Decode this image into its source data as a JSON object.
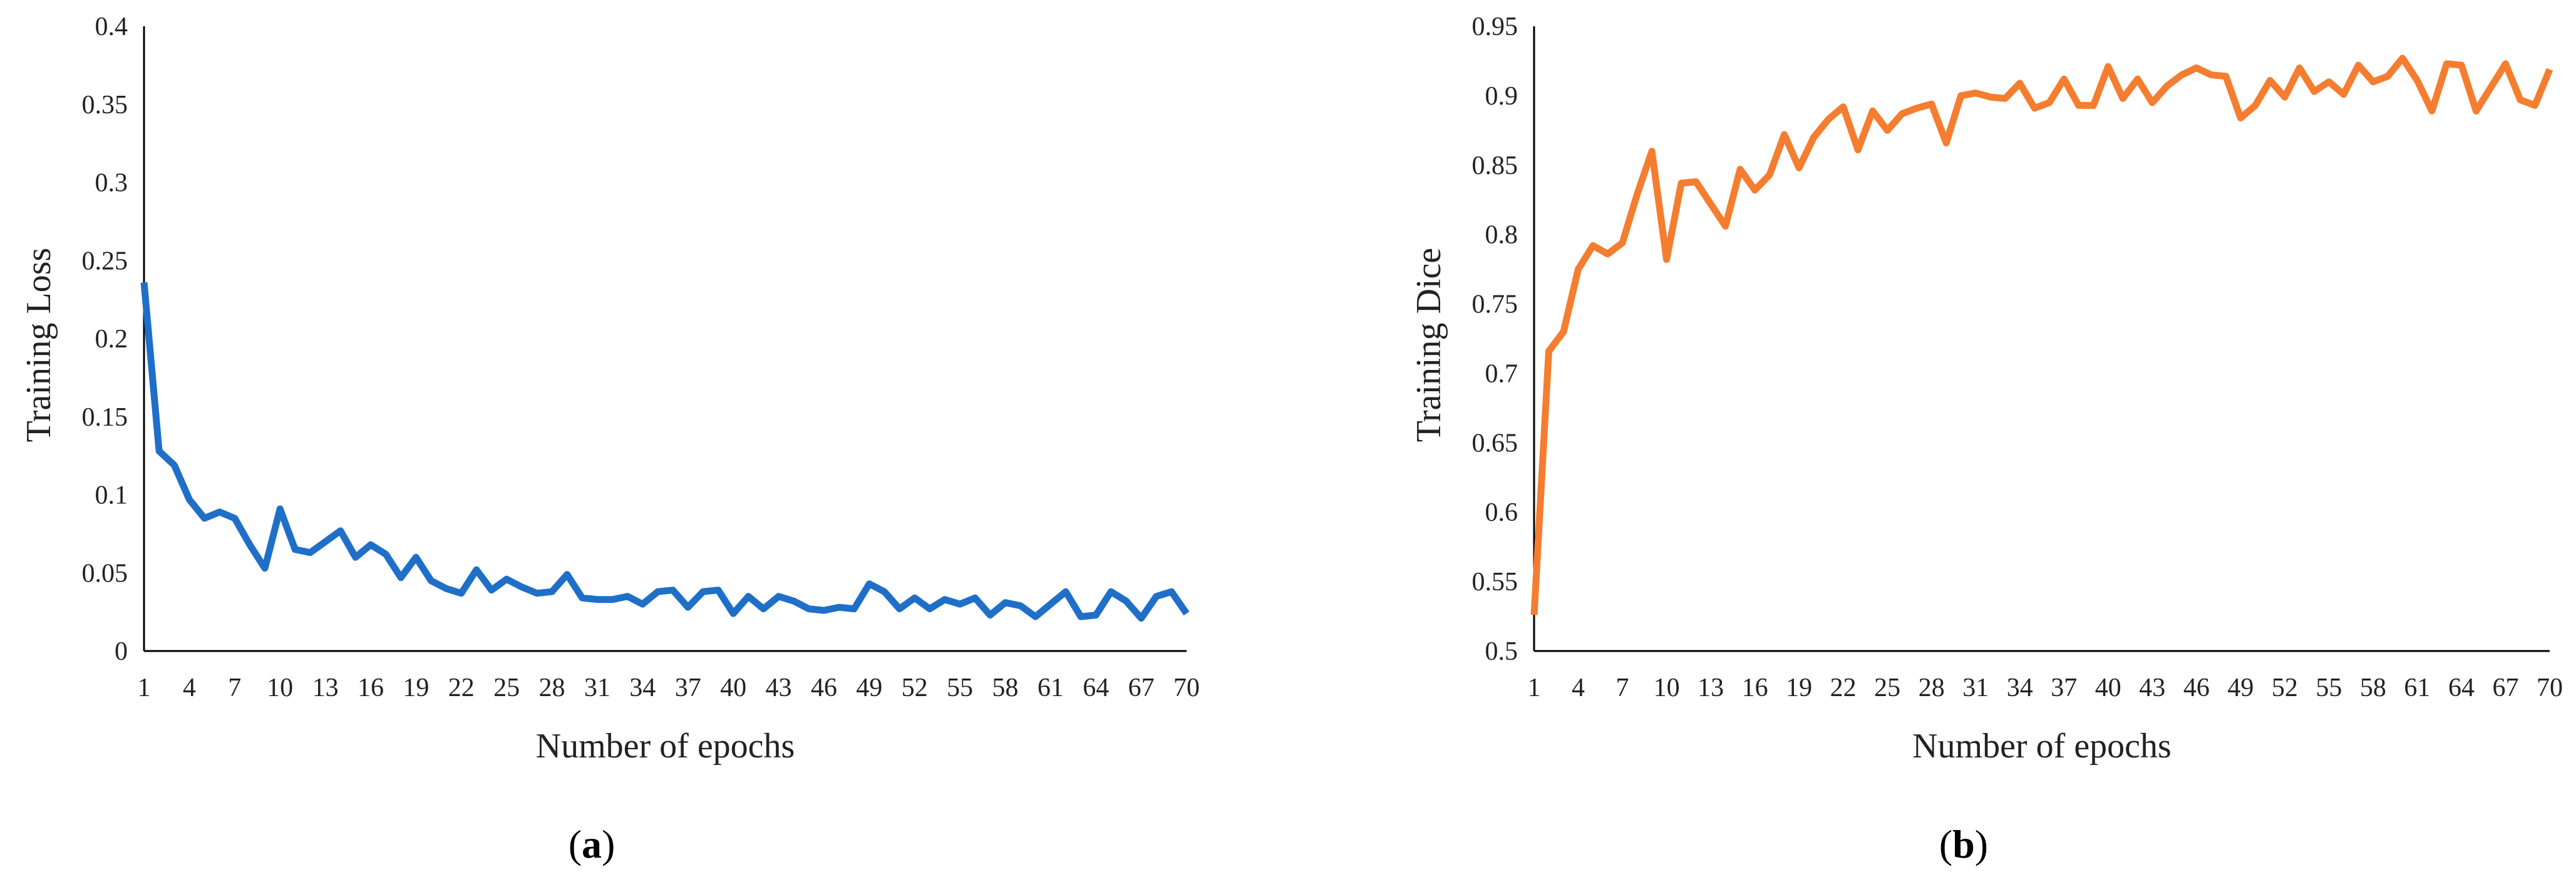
{
  "panels": [
    {
      "label_letter": "a",
      "chart_data": {
        "type": "line",
        "title": "",
        "xlabel": "Number of epochs",
        "ylabel": "Training Loss",
        "xlim": [
          1,
          70
        ],
        "ylim": [
          0,
          0.4
        ],
        "yticks": [
          0,
          0.05,
          0.1,
          0.15,
          0.2,
          0.25,
          0.3,
          0.35,
          0.4
        ],
        "ytick_labels": [
          "0",
          "0.05",
          "0.1",
          "0.15",
          "0.2",
          "0.25",
          "0.3",
          "0.35",
          "0.4"
        ],
        "xticks": [
          1,
          4,
          7,
          10,
          13,
          16,
          19,
          22,
          25,
          28,
          31,
          34,
          37,
          40,
          43,
          46,
          49,
          52,
          55,
          58,
          61,
          64,
          67,
          70
        ],
        "grid": false,
        "legend": "none",
        "color": "#1f6fc9",
        "series": [
          {
            "x": [
              1,
              2,
              3,
              4,
              5,
              6,
              7,
              8,
              9,
              10,
              11,
              12,
              13,
              14,
              15,
              16,
              17,
              18,
              19,
              20,
              21,
              22,
              23,
              24,
              25,
              26,
              27,
              28,
              29,
              30,
              31,
              32,
              33,
              34,
              35,
              36,
              37,
              38,
              39,
              40,
              41,
              42,
              43,
              44,
              45,
              46,
              47,
              48,
              49,
              50,
              51,
              52,
              53,
              54,
              55,
              56,
              57,
              58,
              59,
              60,
              61,
              62,
              63,
              64,
              65,
              66,
              67,
              68,
              69,
              70
            ],
            "values": [
              0.236,
              0.128,
              0.119,
              0.097,
              0.085,
              0.089,
              0.085,
              0.068,
              0.053,
              0.091,
              0.065,
              0.063,
              0.07,
              0.077,
              0.06,
              0.068,
              0.062,
              0.047,
              0.06,
              0.045,
              0.04,
              0.037,
              0.052,
              0.039,
              0.046,
              0.041,
              0.037,
              0.038,
              0.049,
              0.034,
              0.033,
              0.033,
              0.035,
              0.03,
              0.038,
              0.039,
              0.028,
              0.038,
              0.039,
              0.024,
              0.035,
              0.027,
              0.035,
              0.032,
              0.027,
              0.026,
              0.028,
              0.027,
              0.043,
              0.038,
              0.027,
              0.034,
              0.027,
              0.033,
              0.03,
              0.034,
              0.023,
              0.031,
              0.029,
              0.022,
              0.03,
              0.038,
              0.022,
              0.023,
              0.038,
              0.032,
              0.021,
              0.035,
              0.038,
              0.024
            ]
          }
        ]
      }
    },
    {
      "label_letter": "b",
      "chart_data": {
        "type": "line",
        "title": "",
        "xlabel": "Number of epochs",
        "ylabel": "Training Dice",
        "xlim": [
          1,
          70
        ],
        "ylim": [
          0.5,
          0.95
        ],
        "yticks": [
          0.5,
          0.55,
          0.6,
          0.65,
          0.7,
          0.75,
          0.8,
          0.85,
          0.9,
          0.95
        ],
        "ytick_labels": [
          "0.5",
          "0.55",
          "0.6",
          "0.65",
          "0.7",
          "0.75",
          "0.8",
          "0.85",
          "0.9",
          "0.95"
        ],
        "xticks": [
          1,
          4,
          7,
          10,
          13,
          16,
          19,
          22,
          25,
          28,
          31,
          34,
          37,
          40,
          43,
          46,
          49,
          52,
          55,
          58,
          61,
          64,
          67,
          70
        ],
        "grid": false,
        "legend": "none",
        "color": "#f47d30",
        "series": [
          {
            "x": [
              1,
              2,
              3,
              4,
              5,
              6,
              7,
              8,
              9,
              10,
              11,
              12,
              13,
              14,
              15,
              16,
              17,
              18,
              19,
              20,
              21,
              22,
              23,
              24,
              25,
              26,
              27,
              28,
              29,
              30,
              31,
              32,
              33,
              34,
              35,
              36,
              37,
              38,
              39,
              40,
              41,
              42,
              43,
              44,
              45,
              46,
              47,
              48,
              49,
              50,
              51,
              52,
              53,
              54,
              55,
              56,
              57,
              58,
              59,
              60,
              61,
              62,
              63,
              64,
              65,
              66,
              67,
              68,
              69,
              70
            ],
            "values": [
              0.526,
              0.716,
              0.73,
              0.775,
              0.792,
              0.786,
              0.794,
              0.829,
              0.86,
              0.782,
              0.837,
              0.838,
              0.822,
              0.806,
              0.847,
              0.832,
              0.843,
              0.872,
              0.848,
              0.87,
              0.883,
              0.892,
              0.861,
              0.889,
              0.875,
              0.887,
              0.891,
              0.894,
              0.866,
              0.9,
              0.902,
              0.899,
              0.898,
              0.909,
              0.891,
              0.895,
              0.912,
              0.893,
              0.893,
              0.921,
              0.898,
              0.912,
              0.895,
              0.907,
              0.915,
              0.92,
              0.915,
              0.914,
              0.884,
              0.893,
              0.911,
              0.899,
              0.92,
              0.903,
              0.91,
              0.901,
              0.922,
              0.91,
              0.914,
              0.927,
              0.911,
              0.889,
              0.923,
              0.922,
              0.889,
              0.906,
              0.923,
              0.897,
              0.893,
              0.919
            ]
          }
        ]
      }
    }
  ]
}
